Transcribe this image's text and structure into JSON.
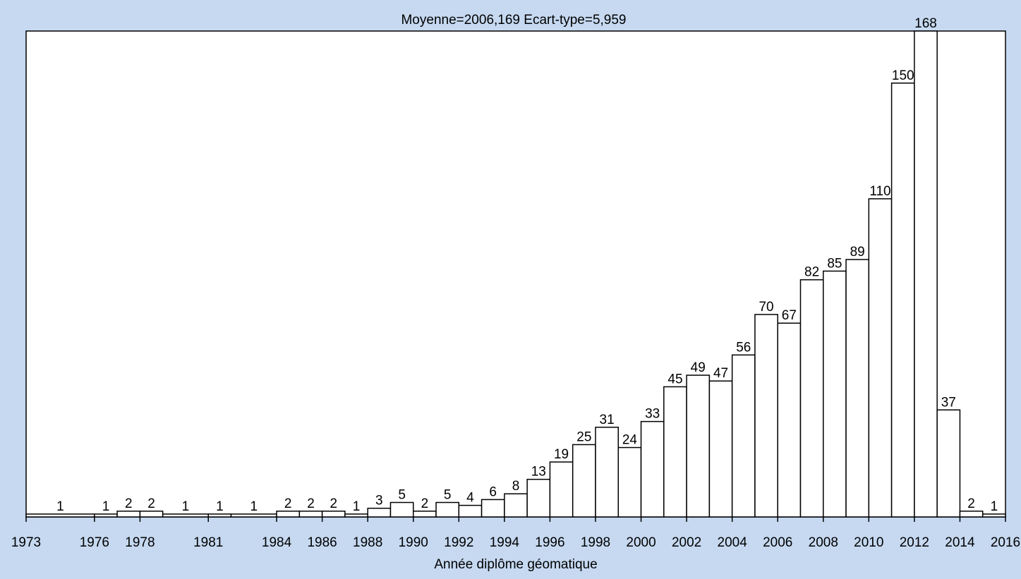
{
  "chart_data": {
    "type": "histogram",
    "title": "Moyenne=2006,169  Ecart-type=5,959",
    "x_label": "Année diplôme géomatique",
    "bins": [
      1973,
      1976,
      1977,
      1978,
      1979,
      1981,
      1982,
      1984,
      1985,
      1986,
      1987,
      1988,
      1989,
      1990,
      1991,
      1992,
      1993,
      1994,
      1995,
      1996,
      1997,
      1998,
      1999,
      2000,
      2001,
      2002,
      2003,
      2004,
      2005,
      2006,
      2007,
      2008,
      2009,
      2010,
      2011,
      2012,
      2013,
      2014,
      2015,
      2016
    ],
    "values": [
      1,
      1,
      2,
      2,
      1,
      1,
      1,
      2,
      2,
      2,
      1,
      3,
      5,
      2,
      5,
      4,
      6,
      8,
      13,
      19,
      25,
      31,
      24,
      33,
      45,
      49,
      47,
      56,
      70,
      67,
      82,
      85,
      89,
      110,
      150,
      168,
      37,
      2,
      1
    ],
    "xlim": [
      1973,
      2016
    ],
    "xticks": [
      1973,
      1976,
      1978,
      1981,
      1984,
      1986,
      1988,
      1990,
      1992,
      1994,
      1996,
      1998,
      2000,
      2002,
      2004,
      2006,
      2008,
      2010,
      2012,
      2014,
      2016
    ],
    "ylim": [
      0,
      168
    ],
    "color": "#ffffff"
  }
}
